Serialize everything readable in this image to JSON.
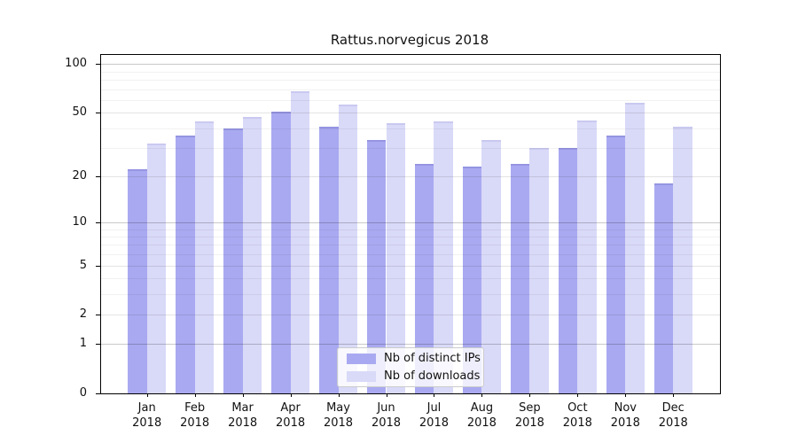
{
  "title": "Rattus.norvegicus 2018",
  "chart_data": {
    "type": "bar",
    "title": "Rattus.norvegicus 2018",
    "categories": [
      "Jan",
      "Feb",
      "Mar",
      "Apr",
      "May",
      "Jun",
      "Jul",
      "Aug",
      "Sep",
      "Oct",
      "Nov",
      "Dec"
    ],
    "year": "2018",
    "series": [
      {
        "name": "Nb of distinct IPs",
        "color": "#a9a9f1",
        "edge_color": "#9595e2",
        "values": [
          22,
          36,
          40,
          51,
          41,
          34,
          24,
          23,
          24,
          30,
          36,
          18
        ]
      },
      {
        "name": "Nb of downloads",
        "color": "#d9d9f8",
        "edge_color": "#c9c9f0",
        "values": [
          32,
          44,
          47,
          68,
          56,
          43,
          44,
          34,
          30,
          45,
          58,
          41
        ]
      }
    ],
    "xlabel": "",
    "ylabel": "",
    "yticks": [
      0,
      1,
      2,
      5,
      10,
      20,
      50,
      100
    ],
    "ylim": [
      0,
      114
    ],
    "yscale": "symlog(log10(1+v))",
    "grid": "on",
    "gridlines_over_bars": true,
    "legend_position": "inside bottom center",
    "colors": {
      "background": "#ffffff",
      "spine": "#000000",
      "grid_major": "#c9c9c9",
      "grid_mid": "#e4e4e4",
      "grid_minor": "#f0f0f0",
      "text": "#111111",
      "legend_border": "#cccccc"
    }
  }
}
